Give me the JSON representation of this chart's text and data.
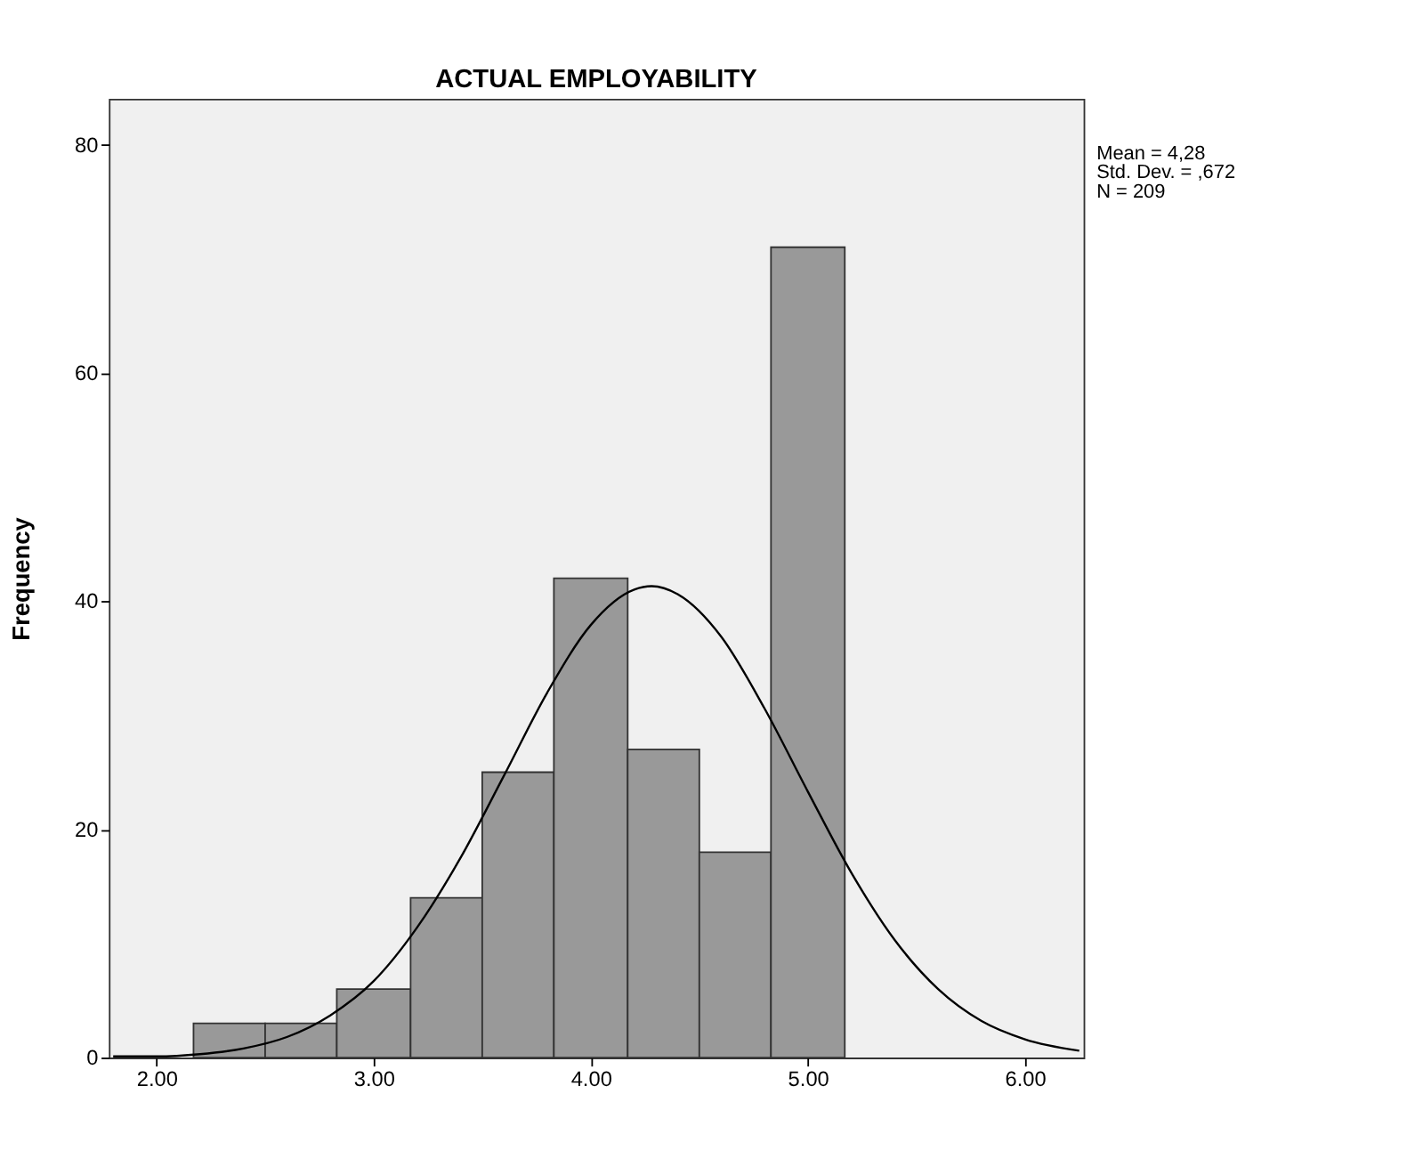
{
  "chart_data": {
    "type": "histogram",
    "title": "ACTUAL EMPLOYABILITY",
    "ylabel": "Frequency",
    "bins": [
      2.17,
      2.5,
      2.83,
      3.17,
      3.5,
      3.83,
      4.17,
      4.5,
      4.83,
      5.17
    ],
    "values": [
      3,
      3,
      6,
      14,
      25,
      42,
      27,
      18,
      71
    ],
    "color": "#999999",
    "series": [
      {
        "type": "line",
        "color": "#000000",
        "x": [
          1.8,
          2.0,
          2.2,
          2.4,
          2.6,
          2.8,
          3.0,
          3.2,
          3.4,
          3.6,
          3.8,
          4.0,
          4.2,
          4.28,
          4.4,
          4.6,
          4.8,
          5.0,
          5.2,
          5.4,
          5.6,
          5.8,
          6.0,
          6.25
        ],
        "values": [
          0.1,
          0.1,
          0.3,
          0.8,
          1.8,
          3.7,
          6.7,
          11.4,
          17.5,
          24.7,
          32.0,
          37.9,
          41.0,
          41.3,
          40.6,
          36.9,
          30.6,
          23.3,
          16.2,
          10.3,
          6.0,
          3.2,
          1.6,
          0.6
        ]
      }
    ],
    "xlim": [
      1.78,
      6.27
    ],
    "ylim": [
      0,
      84
    ],
    "xticks": [
      {
        "value": 2,
        "label": "2.00"
      },
      {
        "value": 3,
        "label": "3.00"
      },
      {
        "value": 4,
        "label": "4.00"
      },
      {
        "value": 5,
        "label": "5.00"
      },
      {
        "value": 6,
        "label": "6.00"
      }
    ],
    "yticks": [
      0,
      20,
      40,
      60,
      80
    ],
    "annotations": [
      "Mean = 4,28",
      "Std. Dev. = ,672",
      "N = 209"
    ],
    "grid": false
  }
}
